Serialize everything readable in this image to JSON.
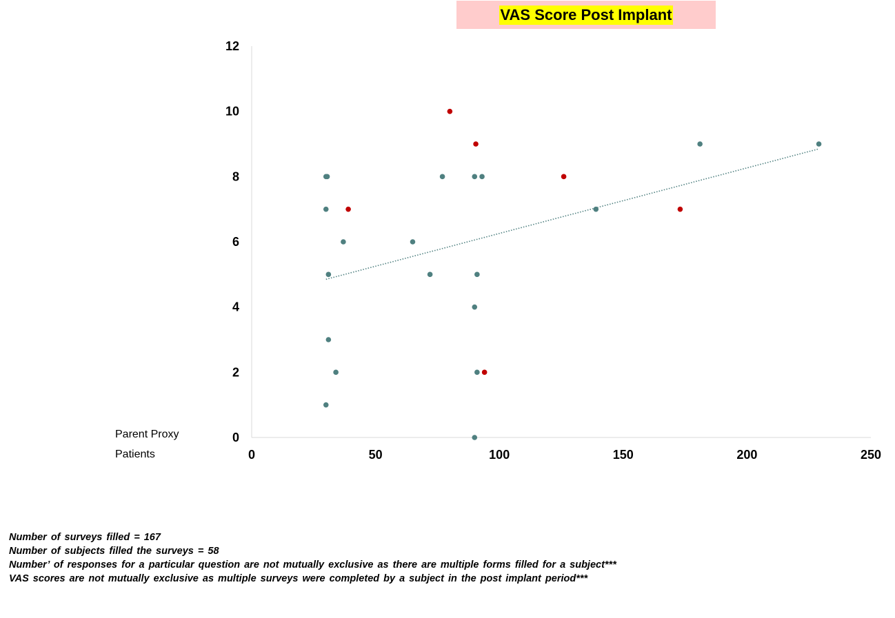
{
  "chart_data": {
    "type": "scatter",
    "title": "VAS Score Post Implant",
    "xlabel": "",
    "ylabel": "",
    "xlim": [
      0,
      250
    ],
    "ylim": [
      0,
      12
    ],
    "x_ticks": [
      0,
      50,
      100,
      150,
      200,
      250
    ],
    "y_ticks": [
      0,
      2,
      4,
      6,
      8,
      10,
      12
    ],
    "grid": false,
    "legend_position": "left-bottom",
    "series": [
      {
        "name": "Parent Proxy",
        "color": "#c00000",
        "points": [
          {
            "x": 80,
            "y": 10
          },
          {
            "x": 90.5,
            "y": 9
          },
          {
            "x": 126,
            "y": 8
          },
          {
            "x": 39,
            "y": 7
          },
          {
            "x": 173,
            "y": 7
          },
          {
            "x": 94,
            "y": 2
          }
        ]
      },
      {
        "name": "Patients",
        "color": "#4f8080",
        "points": [
          {
            "x": 30,
            "y": 8
          },
          {
            "x": 30.5,
            "y": 8
          },
          {
            "x": 77,
            "y": 8
          },
          {
            "x": 90,
            "y": 8
          },
          {
            "x": 93,
            "y": 8
          },
          {
            "x": 181,
            "y": 9
          },
          {
            "x": 229,
            "y": 9
          },
          {
            "x": 30,
            "y": 7
          },
          {
            "x": 139,
            "y": 7
          },
          {
            "x": 37,
            "y": 6
          },
          {
            "x": 65,
            "y": 6
          },
          {
            "x": 31,
            "y": 5
          },
          {
            "x": 72,
            "y": 5
          },
          {
            "x": 91,
            "y": 5
          },
          {
            "x": 90,
            "y": 4
          },
          {
            "x": 31,
            "y": 3
          },
          {
            "x": 34,
            "y": 2
          },
          {
            "x": 91,
            "y": 2
          },
          {
            "x": 30,
            "y": 1
          },
          {
            "x": 90,
            "y": 0
          }
        ]
      }
    ],
    "trendline": {
      "style": "dotted",
      "color": "#4f8080",
      "from": {
        "x": 30,
        "y": 4.85
      },
      "to": {
        "x": 229,
        "y": 8.85
      }
    }
  },
  "notes": [
    "Number of surveys filled  = 167",
    "Number of subjects filled  the surveys = 58",
    "Number’ of responses  for a particular question  are not mutually  exclusive  as there are multiple  forms filled  for a subject***",
    "VAS scores are not mutually  exclusive  as multiple  surveys were completed  by a subject in the post implant  period***"
  ]
}
